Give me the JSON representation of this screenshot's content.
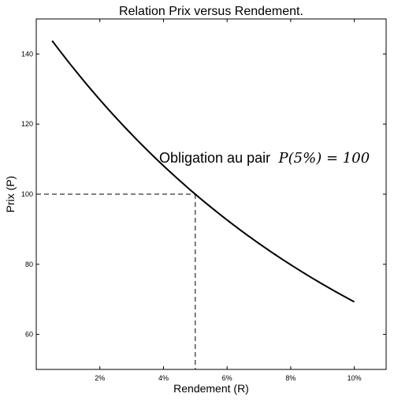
{
  "chart_data": {
    "type": "line",
    "title": "Relation Prix versus Rendement.",
    "xlabel": "Rendement (R)",
    "ylabel": "Prix (P)",
    "xlim": [
      0.0,
      0.11
    ],
    "ylim": [
      50,
      150
    ],
    "x_ticks": [
      0.02,
      0.04,
      0.06,
      0.08,
      0.1
    ],
    "x_tick_labels": [
      "2%",
      "4%",
      "6%",
      "8%",
      "10%"
    ],
    "y_ticks": [
      60,
      80,
      100,
      120,
      140
    ],
    "y_tick_labels": [
      "60",
      "80",
      "100",
      "120",
      "140"
    ],
    "grid": false,
    "series": [
      {
        "color": "#000000",
        "x": [
          0.005,
          0.01,
          0.015,
          0.02,
          0.025,
          0.03,
          0.035,
          0.04,
          0.045,
          0.05,
          0.055,
          0.06,
          0.065,
          0.07,
          0.075,
          0.08,
          0.085,
          0.09,
          0.095,
          0.1
        ],
        "y": [
          143.8,
          136.7,
          130.1,
          124.0,
          118.3,
          113.0,
          108.0,
          103.4,
          99.9,
          100.0,
          95.5,
          92.0,
          88.8,
          85.8,
          83.0,
          80.4,
          77.8,
          75.5,
          73.2,
          69.1
        ]
      }
    ],
    "reference_point": {
      "x": 0.05,
      "y": 100
    },
    "annotation": {
      "text": "Obligation au pair",
      "math": "P(5%) = 100",
      "x": 0.0385,
      "y": 110
    }
  }
}
